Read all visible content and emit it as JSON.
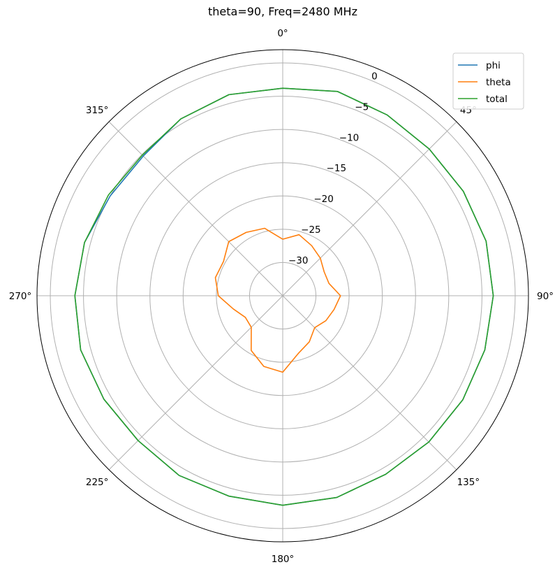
{
  "chart_data": {
    "type": "polar-line",
    "title": "theta=90, Freq=2480 MHz",
    "theta_zero": "top",
    "theta_direction": "clockwise",
    "r_range": [
      -35,
      2
    ],
    "grid": true,
    "legend_position": "top-right",
    "angle_ticks": [
      {
        "deg": 0,
        "label": "0°"
      },
      {
        "deg": 45,
        "label": "45°"
      },
      {
        "deg": 90,
        "label": "90°"
      },
      {
        "deg": 135,
        "label": "135°"
      },
      {
        "deg": 180,
        "label": "180°"
      },
      {
        "deg": 225,
        "label": "225°"
      },
      {
        "deg": 270,
        "label": "270°"
      },
      {
        "deg": 315,
        "label": "315°"
      }
    ],
    "radial_ticks": [
      {
        "value": 0,
        "label": "0"
      },
      {
        "value": -5,
        "label": "−5"
      },
      {
        "value": -10,
        "label": "−10"
      },
      {
        "value": -15,
        "label": "−15"
      },
      {
        "value": -20,
        "label": "−20"
      },
      {
        "value": -25,
        "label": "−25"
      },
      {
        "value": -30,
        "label": "−30"
      }
    ],
    "radial_label_angle_deg": 22.5,
    "angles_deg": [
      0,
      15,
      30,
      45,
      60,
      75,
      90,
      105,
      120,
      135,
      150,
      165,
      180,
      195,
      210,
      225,
      240,
      255,
      270,
      285,
      300,
      315,
      330,
      345,
      360
    ],
    "series": [
      {
        "name": "phi",
        "color": "#1f77b4",
        "values": [
          -3.8,
          -3.2,
          -3.6,
          -3.8,
          -3.6,
          -3.3,
          -3.3,
          -3.5,
          -3.7,
          -3.9,
          -4.0,
          -3.6,
          -3.5,
          -3.8,
          -3.8,
          -4.2,
          -3.9,
          -3.5,
          -3.7,
          -4.1,
          -5.0,
          -5.3,
          -4.3,
          -3.7,
          -3.8
        ]
      },
      {
        "name": "theta",
        "color": "#ff7f0e",
        "values": [
          -26.5,
          -25.5,
          -26.3,
          -27.0,
          -27.8,
          -27.8,
          -26.3,
          -27.0,
          -27.5,
          -28.2,
          -27.0,
          -26.0,
          -23.5,
          -24.0,
          -25.5,
          -28.3,
          -28.5,
          -27.3,
          -25.3,
          -24.5,
          -24.7,
          -23.5,
          -24.0,
          -24.5,
          -26.5
        ]
      },
      {
        "name": "total",
        "color": "#2ca02c",
        "values": [
          -3.8,
          -3.2,
          -3.6,
          -3.8,
          -3.6,
          -3.3,
          -3.3,
          -3.5,
          -3.7,
          -3.9,
          -4.0,
          -3.6,
          -3.5,
          -3.8,
          -3.8,
          -4.2,
          -3.9,
          -3.5,
          -3.7,
          -4.1,
          -4.7,
          -5.1,
          -4.3,
          -3.7,
          -3.8
        ]
      }
    ]
  }
}
